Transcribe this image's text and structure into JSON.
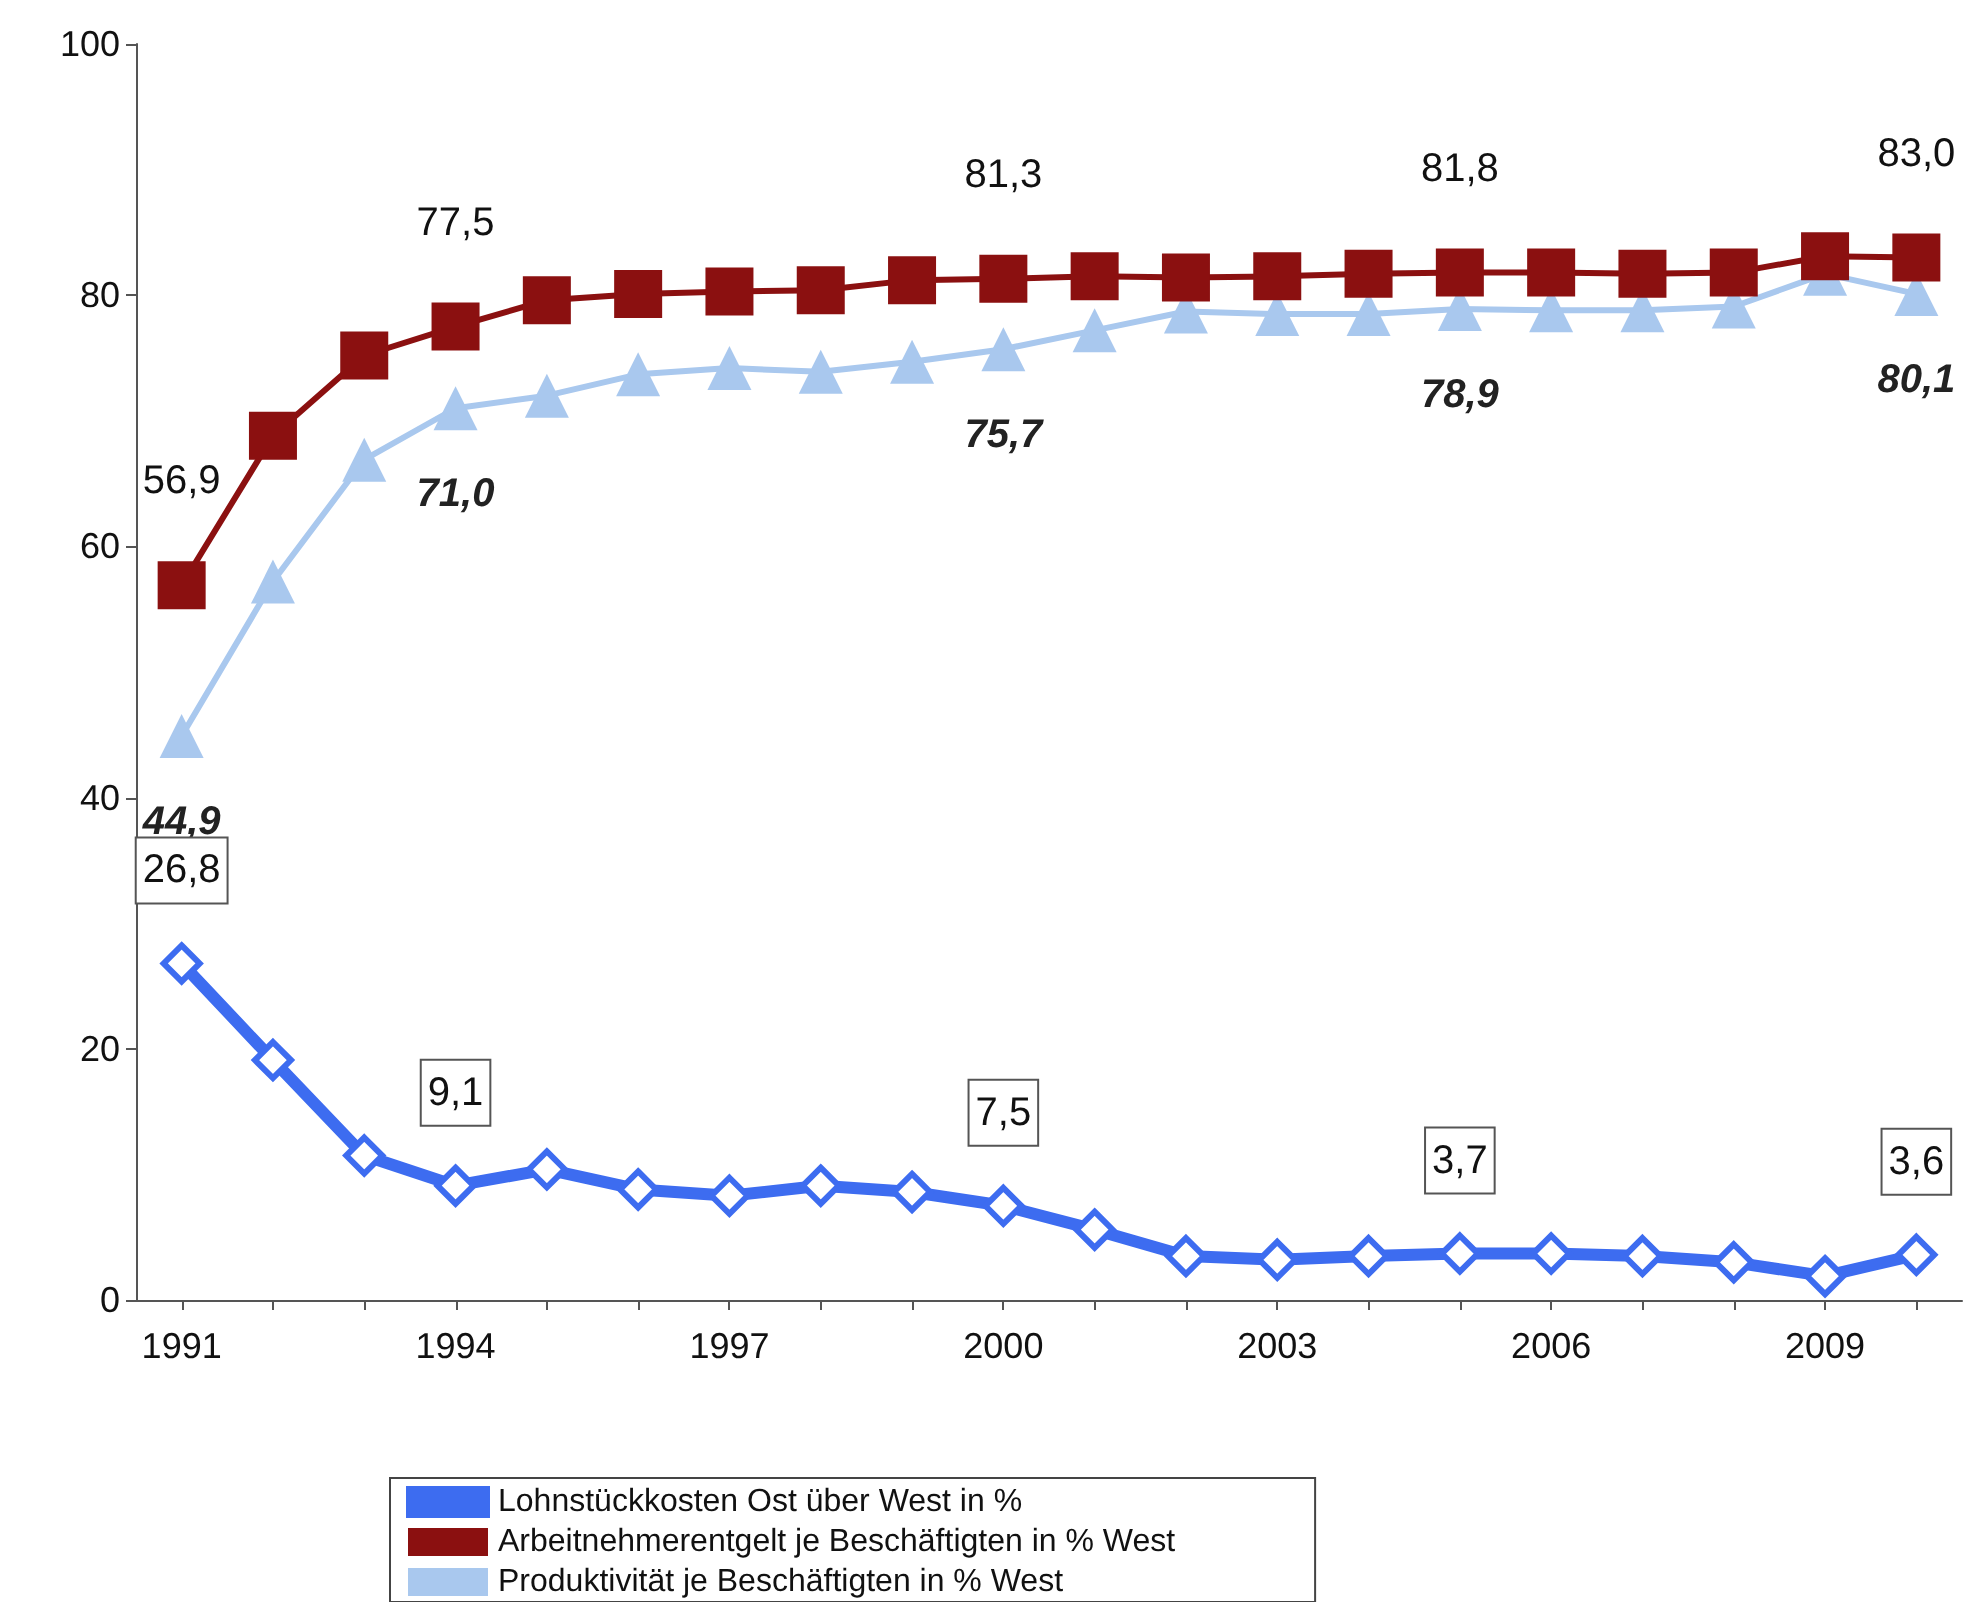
{
  "chart_data": {
    "type": "line",
    "categories": [
      "1991",
      null,
      null,
      "1994",
      null,
      null,
      "1997",
      null,
      null,
      "2000",
      null,
      null,
      "2003",
      null,
      null,
      "2006",
      null,
      null,
      "2009",
      null
    ],
    "ylim": [
      0,
      100
    ],
    "yticks": [
      0,
      20,
      40,
      60,
      80,
      100
    ],
    "grid": false,
    "legend": "bottom",
    "series": [
      {
        "name": "Lohnstückkosten Ost über West in %",
        "color": "#3d6cf0",
        "marker": "diamond",
        "values": [
          26.8,
          19.1,
          11.5,
          9.1,
          10.4,
          8.8,
          8.3,
          9.1,
          8.6,
          7.5,
          5.6,
          3.5,
          3.2,
          3.5,
          3.7,
          3.7,
          3.5,
          3.0,
          1.9,
          3.6
        ],
        "value_labels": [
          "26,8",
          null,
          null,
          "9,1",
          null,
          null,
          null,
          null,
          null,
          "7,5",
          null,
          null,
          null,
          null,
          "3,7",
          null,
          null,
          null,
          null,
          "3,6"
        ]
      },
      {
        "name": "Arbeitnehmerentgelt je Beschäftigten in % West",
        "color": "#8b1010",
        "marker": "square",
        "values": [
          56.9,
          68.8,
          75.2,
          77.5,
          79.6,
          80.1,
          80.3,
          80.4,
          81.2,
          81.3,
          81.5,
          81.4,
          81.5,
          81.7,
          81.8,
          81.8,
          81.7,
          81.8,
          83.1,
          83.0
        ],
        "value_labels": [
          "56,9",
          null,
          null,
          "77,5",
          null,
          null,
          null,
          null,
          null,
          "81,3",
          null,
          null,
          null,
          null,
          "81,8",
          null,
          null,
          null,
          null,
          "83,0"
        ]
      },
      {
        "name": "Produktivität je Beschäftigten in % West",
        "color": "#a9c8ee",
        "marker": "triangle",
        "values": [
          44.9,
          57.2,
          66.9,
          71.0,
          72.0,
          73.7,
          74.2,
          73.9,
          74.7,
          75.7,
          77.2,
          78.7,
          78.5,
          78.5,
          78.9,
          78.8,
          78.8,
          79.1,
          81.7,
          80.1
        ],
        "value_labels": [
          "44,9",
          null,
          null,
          "71,0",
          null,
          null,
          null,
          null,
          null,
          "75,7",
          null,
          null,
          null,
          null,
          "78,9",
          null,
          null,
          null,
          null,
          "80,1"
        ]
      }
    ]
  }
}
